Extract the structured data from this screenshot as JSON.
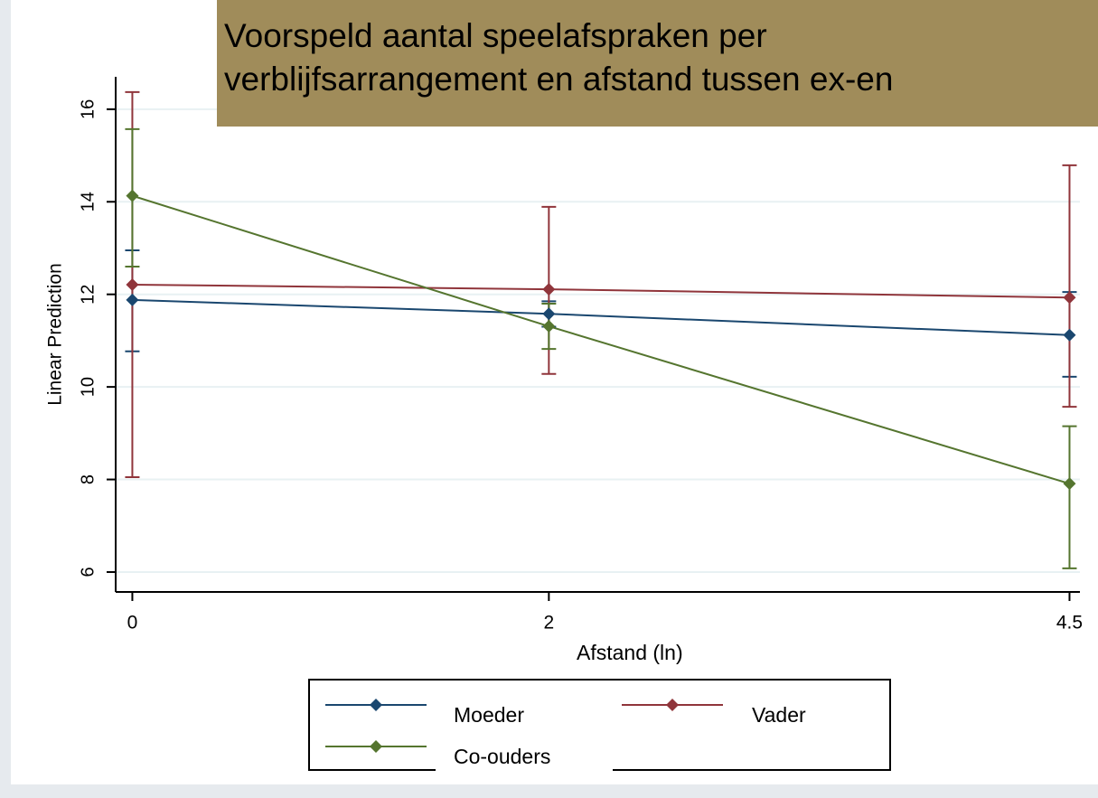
{
  "chart_data": {
    "type": "line",
    "title": "Voorspeld aantal speelafspraken per verblijfsarrangement en afstand tussen ex-en",
    "xlabel": "Afstand (ln)",
    "ylabel": "Linear Prediction",
    "x": [
      0,
      2,
      4.5
    ],
    "xlim": [
      -0.08,
      4.55
    ],
    "xticks": [
      0,
      2,
      4.5
    ],
    "ylim": [
      5.57,
      16.7
    ],
    "yticks": [
      6,
      8,
      10,
      12,
      14,
      16
    ],
    "grid": true,
    "series": [
      {
        "name": "Moeder",
        "color": "#1a476f",
        "values": [
          11.88,
          11.58,
          11.12
        ],
        "lower": [
          10.77,
          11.3,
          10.22
        ],
        "upper": [
          12.95,
          11.85,
          12.05
        ]
      },
      {
        "name": "Vader",
        "color": "#90353b",
        "values": [
          12.21,
          12.11,
          11.93
        ],
        "lower": [
          8.05,
          10.28,
          9.57
        ],
        "upper": [
          16.37,
          13.89,
          14.79
        ]
      },
      {
        "name": "Co-ouders",
        "color": "#55752f",
        "values": [
          14.13,
          11.31,
          7.91
        ],
        "lower": [
          12.6,
          10.82,
          6.08
        ],
        "upper": [
          15.57,
          11.8,
          9.15
        ]
      }
    ]
  }
}
